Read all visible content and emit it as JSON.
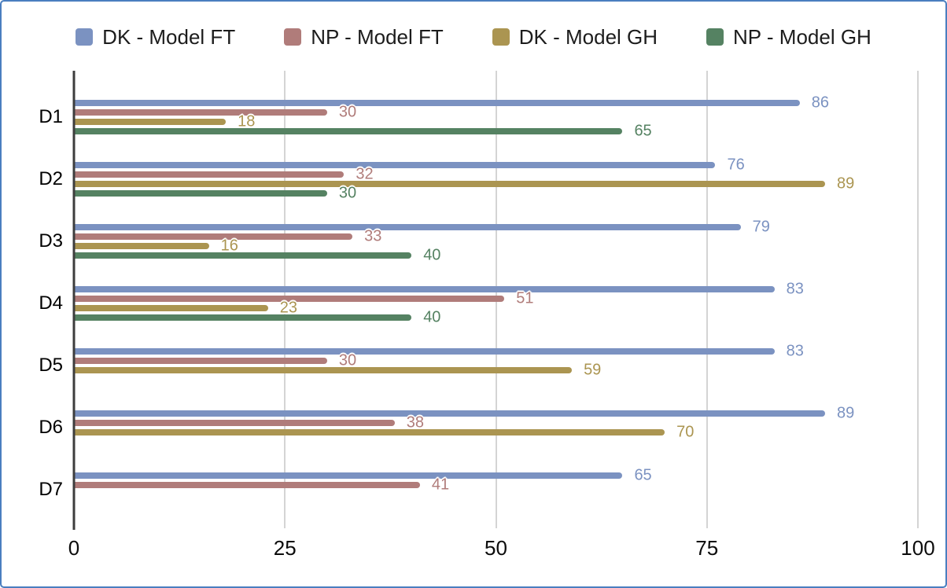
{
  "page": {
    "border_color": "#4a7ebf",
    "background": "#ffffff"
  },
  "chart_data": {
    "type": "bar",
    "orientation": "horizontal",
    "title": "",
    "xlabel": "",
    "ylabel": "",
    "categories": [
      "D1",
      "D2",
      "D3",
      "D4",
      "D5",
      "D6",
      "D7"
    ],
    "series": [
      {
        "name": "DK - Model FT",
        "color": "#7b92c1",
        "values": [
          86,
          76,
          79,
          83,
          83,
          89,
          65
        ]
      },
      {
        "name": "NP - Model FT",
        "color": "#b07c7a",
        "values": [
          30,
          32,
          33,
          51,
          30,
          38,
          41
        ]
      },
      {
        "name": "DK - Model GH",
        "color": "#ab9551",
        "values": [
          18,
          89,
          16,
          23,
          59,
          70,
          null
        ]
      },
      {
        "name": "NP - Model GH",
        "color": "#558262",
        "values": [
          65,
          30,
          40,
          40,
          null,
          null,
          null
        ]
      }
    ],
    "xlim": [
      0,
      100
    ],
    "xticks": [
      0,
      25,
      50,
      75,
      100
    ],
    "grid": "vertical-only",
    "grid_color": "#d4d4d4",
    "axis_color": "#3d3d3d",
    "legend_position": "top",
    "value_labels": true
  }
}
